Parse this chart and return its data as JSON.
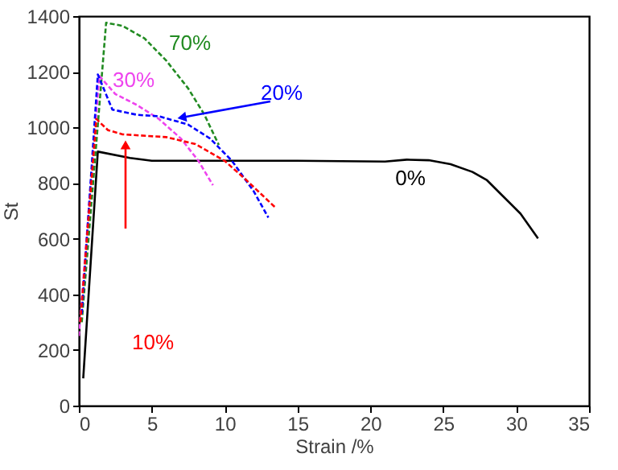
{
  "chart_data": {
    "type": "line",
    "xlabel": "Strain /%",
    "ylabel": "St",
    "xlim": [
      0,
      35
    ],
    "xticks": [
      0,
      5,
      10,
      15,
      20,
      25,
      30,
      35
    ],
    "ylim": [
      0,
      1400
    ],
    "yticks": [
      0,
      200,
      400,
      600,
      800,
      1000,
      1200,
      1400
    ],
    "grid": false,
    "marker": "none",
    "series": [
      {
        "name": "0%",
        "color": "#000000",
        "line_style": "solid",
        "x": [
          0.3,
          1.3,
          3.5,
          5,
          10,
          15,
          21,
          22.5,
          24,
          25.5,
          27,
          28,
          28.9,
          30.3,
          31.5
        ],
        "values": [
          98,
          913,
          890,
          880,
          880,
          880,
          877,
          884,
          882,
          868,
          840,
          810,
          763,
          690,
          601
        ]
      },
      {
        "name": "70%",
        "color": "#228b22",
        "line_style": "dashed",
        "x": [
          0.2,
          1.87,
          3,
          4.5,
          6,
          7.5,
          8.6,
          9.6
        ],
        "values": [
          300,
          1376,
          1365,
          1320,
          1240,
          1140,
          1047,
          937
        ]
      },
      {
        "name": "30%",
        "color": "#ee44ee",
        "line_style": "dashed",
        "x": [
          0,
          1.4,
          2.5,
          4,
          5.5,
          7,
          8.2,
          9.2
        ],
        "values": [
          250,
          1185,
          1120,
          1080,
          1030,
          960,
          880,
          792
        ]
      },
      {
        "name": "20%",
        "color": "#0000ff",
        "line_style": "dashed",
        "x": [
          0.2,
          1.3,
          2.3,
          4,
          5.5,
          7.5,
          9,
          10.5,
          12,
          13
        ],
        "values": [
          330,
          1190,
          1064,
          1045,
          1040,
          1010,
          960,
          880,
          770,
          676
        ]
      },
      {
        "name": "10%",
        "color": "#ff0000",
        "line_style": "dashed",
        "x": [
          0.1,
          1.2,
          2,
          3,
          6,
          8,
          10,
          11.5,
          13.5
        ],
        "values": [
          300,
          1030,
          990,
          975,
          965,
          940,
          880,
          810,
          711
        ]
      }
    ]
  }
}
